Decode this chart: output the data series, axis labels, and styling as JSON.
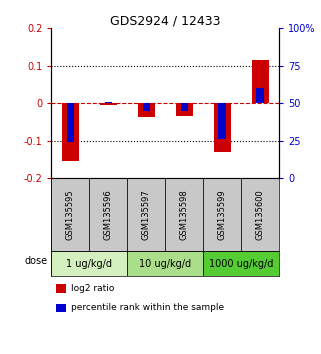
{
  "title": "GDS2924 / 12433",
  "samples": [
    "GSM135595",
    "GSM135596",
    "GSM135597",
    "GSM135598",
    "GSM135599",
    "GSM135600"
  ],
  "log2_ratio": [
    -0.155,
    -0.005,
    -0.038,
    -0.035,
    -0.13,
    0.115
  ],
  "percentile_rank": [
    24,
    51,
    45,
    45,
    26,
    60
  ],
  "dose_groups": [
    {
      "label": "1 ug/kg/d",
      "samples": [
        0,
        1
      ],
      "color": "#d4f0c0"
    },
    {
      "label": "10 ug/kg/d",
      "samples": [
        2,
        3
      ],
      "color": "#aade8a"
    },
    {
      "label": "1000 ug/kg/d",
      "samples": [
        4,
        5
      ],
      "color": "#55cc33"
    }
  ],
  "left_ylim": [
    -0.2,
    0.2
  ],
  "right_ylim": [
    0,
    100
  ],
  "left_yticks": [
    -0.2,
    -0.1,
    0,
    0.1,
    0.2
  ],
  "right_yticks": [
    0,
    25,
    50,
    75,
    100
  ],
  "right_yticklabels": [
    "0",
    "25",
    "50",
    "75",
    "100%"
  ],
  "bar_color_red": "#cc0000",
  "bar_color_blue": "#0000cc",
  "bar_width": 0.45,
  "blue_bar_width": 0.2,
  "hline_zero_color": "#cc0000",
  "hline_dotted_color": "#000000",
  "plot_bg": "#ffffff",
  "label_area_bg": "#c8c8c8",
  "left_tick_color": "#cc0000",
  "right_tick_color": "#0000cc",
  "figsize": [
    3.21,
    3.54
  ],
  "dpi": 100
}
